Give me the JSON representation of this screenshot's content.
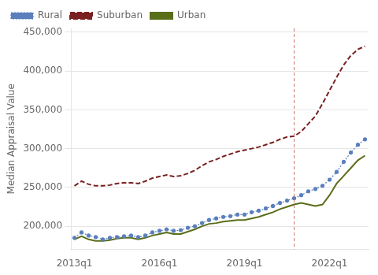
{
  "chart_data": {
    "type": "line",
    "ylabel": "Median Appraisal Value",
    "categories": [
      "2013q1",
      null,
      null,
      null,
      null,
      null,
      null,
      null,
      null,
      null,
      null,
      null,
      "2016q1",
      null,
      null,
      null,
      null,
      null,
      null,
      null,
      null,
      null,
      null,
      null,
      "2019q1",
      null,
      null,
      null,
      null,
      null,
      null,
      null,
      null,
      null,
      null,
      null,
      "2022q1",
      null,
      null,
      null,
      null,
      null
    ],
    "series": [
      {
        "name": "Rural",
        "color": "#5b7fbd",
        "line_style": "dotted",
        "marker": "point",
        "values": [
          185000,
          192000,
          188000,
          186000,
          183000,
          185000,
          186000,
          187000,
          188000,
          186000,
          188000,
          192000,
          194000,
          196000,
          194000,
          195000,
          198000,
          200000,
          204000,
          208000,
          210000,
          212000,
          213000,
          215000,
          215000,
          218000,
          220000,
          223000,
          226000,
          230000,
          233000,
          236000,
          240000,
          245000,
          248000,
          252000,
          260000,
          270000,
          283000,
          295000,
          305000,
          312000
        ]
      },
      {
        "name": "Suburban",
        "color": "#7a2020",
        "line_style": "dashed",
        "marker": "none",
        "values": [
          252000,
          258000,
          254000,
          252000,
          252000,
          253000,
          255000,
          256000,
          256000,
          255000,
          258000,
          262000,
          264000,
          266000,
          264000,
          265000,
          268000,
          272000,
          278000,
          283000,
          286000,
          290000,
          293000,
          296000,
          298000,
          300000,
          302000,
          305000,
          308000,
          312000,
          315000,
          316000,
          322000,
          332000,
          342000,
          358000,
          375000,
          392000,
          408000,
          420000,
          428000,
          432000
        ]
      },
      {
        "name": "Urban",
        "color": "#5a6e1a",
        "line_style": "solid",
        "marker": "none",
        "values": [
          183000,
          187000,
          183000,
          181000,
          181000,
          182000,
          184000,
          185000,
          185000,
          183000,
          185000,
          188000,
          190000,
          192000,
          190000,
          190000,
          193000,
          196000,
          200000,
          203000,
          204000,
          206000,
          207000,
          208000,
          208000,
          210000,
          212000,
          215000,
          218000,
          222000,
          225000,
          228000,
          230000,
          228000,
          226000,
          228000,
          240000,
          255000,
          265000,
          275000,
          285000,
          291000
        ]
      }
    ],
    "ylim": [
      170000,
      455000
    ],
    "yticks": [
      {
        "value": 200000,
        "label": "200,000"
      },
      {
        "value": 250000,
        "label": "250,000"
      },
      {
        "value": 300000,
        "label": "300,000"
      },
      {
        "value": 350000,
        "label": "350,000"
      },
      {
        "value": 400000,
        "label": "400,000"
      },
      {
        "value": 450000,
        "label": "450,000"
      }
    ],
    "grid": true,
    "legend": "upper left",
    "annotations": [
      {
        "type": "vline",
        "x": 31,
        "color": "#cc7777",
        "line_style": "dashed"
      }
    ]
  }
}
